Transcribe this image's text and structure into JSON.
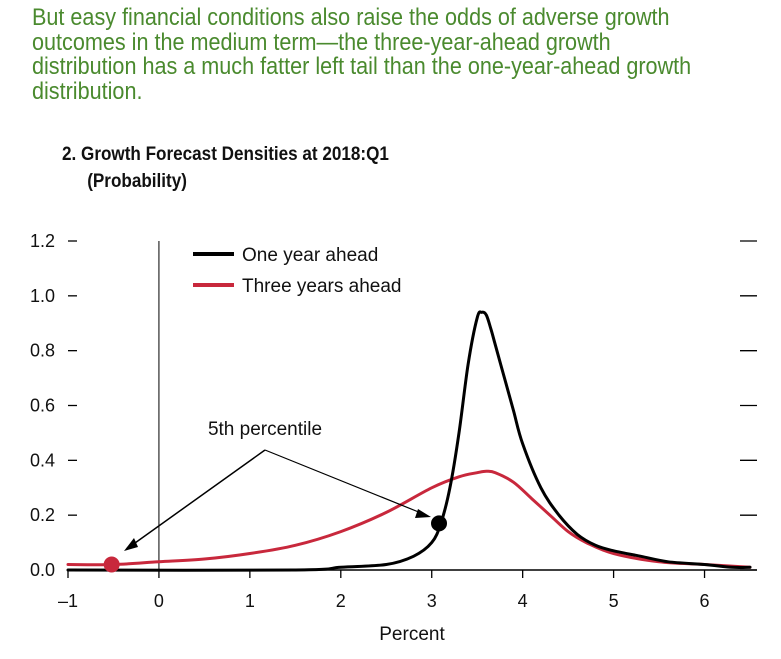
{
  "headline": "But easy financial conditions also raise the odds of adverse growth outcomes in the medium term—the three-year-ahead growth distribution has a much fatter left tail than the one-year-ahead growth distribution.",
  "colors": {
    "headline": "#4a8a2e",
    "one_year": "#000000",
    "three_years": "#c8283c",
    "text": "#111111"
  },
  "chart_data": {
    "type": "line",
    "title_line1": "2. Growth Forecast Densities at 2018:Q1",
    "title_line2": "(Probability)",
    "xlabel": "Percent",
    "ylabel": "",
    "xlim": [
      -1,
      6.5
    ],
    "ylim": [
      0,
      1.2
    ],
    "x_ticks": [
      -1,
      0,
      1,
      2,
      3,
      4,
      5,
      6
    ],
    "x_tick_labels": [
      "–1",
      "0",
      "1",
      "2",
      "3",
      "4",
      "5",
      "6"
    ],
    "y_ticks": [
      0,
      0.2,
      0.4,
      0.6,
      0.8,
      1.0,
      1.2
    ],
    "y_tick_labels": [
      "0.0",
      "0.2",
      "0.4",
      "0.6",
      "0.8",
      "1.0",
      "1.2"
    ],
    "legend_position": "top-left",
    "series": [
      {
        "name": "One year ahead",
        "color": "#000000",
        "x": [
          -1,
          1.5,
          2.0,
          2.5,
          2.8,
          3.0,
          3.1,
          3.2,
          3.3,
          3.4,
          3.5,
          3.55,
          3.6,
          3.65,
          3.7,
          3.8,
          3.9,
          4.0,
          4.2,
          4.4,
          4.6,
          4.8,
          5.0,
          5.3,
          5.6,
          6.0,
          6.3,
          6.5
        ],
        "values": [
          0.0,
          0.0,
          0.01,
          0.02,
          0.05,
          0.1,
          0.17,
          0.3,
          0.5,
          0.75,
          0.92,
          0.94,
          0.93,
          0.88,
          0.82,
          0.7,
          0.58,
          0.46,
          0.3,
          0.2,
          0.13,
          0.09,
          0.07,
          0.05,
          0.03,
          0.02,
          0.01,
          0.01
        ]
      },
      {
        "name": "Three years ahead",
        "color": "#c8283c",
        "x": [
          -1,
          -0.5,
          0.0,
          0.5,
          1.0,
          1.5,
          2.0,
          2.5,
          3.0,
          3.3,
          3.5,
          3.6,
          3.7,
          3.9,
          4.1,
          4.3,
          4.5,
          4.7,
          5.0,
          5.5,
          6.0,
          6.5
        ],
        "values": [
          0.02,
          0.02,
          0.03,
          0.04,
          0.06,
          0.09,
          0.14,
          0.21,
          0.3,
          0.34,
          0.355,
          0.36,
          0.355,
          0.32,
          0.26,
          0.2,
          0.14,
          0.1,
          0.06,
          0.03,
          0.02,
          0.01
        ]
      }
    ],
    "markers": [
      {
        "name": "three-year 5th percentile",
        "x": -0.52,
        "y": 0.02,
        "color": "#c8283c"
      },
      {
        "name": "one-year 5th percentile",
        "x": 3.08,
        "y": 0.17,
        "color": "#000000"
      }
    ],
    "annotation": "5th percentile"
  }
}
